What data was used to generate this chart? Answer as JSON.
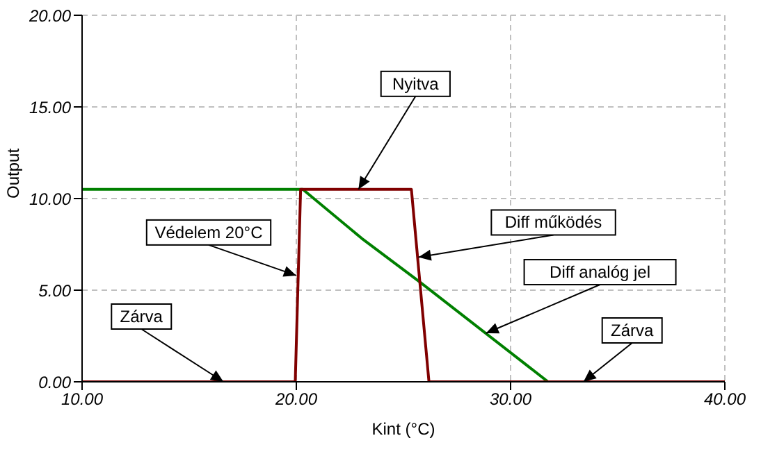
{
  "chart_data": {
    "type": "line",
    "xlabel": "Kint (°C)",
    "ylabel": "Output",
    "xlim": [
      10,
      40
    ],
    "xticks": [
      {
        "value": 10,
        "label": "10.00"
      },
      {
        "value": 20,
        "label": "20.00"
      },
      {
        "value": 30,
        "label": "30.00"
      },
      {
        "value": 40,
        "label": "40.00"
      }
    ],
    "ylim": [
      0,
      20
    ],
    "yticks": [
      {
        "value": 0,
        "label": "0.00"
      },
      {
        "value": 5,
        "label": "5.00"
      },
      {
        "value": 10,
        "label": "10.00"
      },
      {
        "value": 15,
        "label": "15.00"
      },
      {
        "value": 20,
        "label": "20.00"
      }
    ],
    "grid": true,
    "marker": "none",
    "line_style": "solid",
    "series": [
      {
        "color": "#008000",
        "x": [
          10,
          20.3,
          23.05,
          25.76,
          31.75,
          40
        ],
        "values": [
          10.5,
          10.5,
          7.83,
          5.45,
          0,
          0
        ]
      },
      {
        "color": "#800000",
        "x": [
          10,
          19.95,
          20.2,
          25.37,
          26.19,
          40
        ],
        "values": [
          0,
          0,
          10.5,
          10.5,
          0,
          0
        ]
      }
    ],
    "annotations": [
      {
        "text": "Nyitva",
        "x": 22.9,
        "y": 10.5
      },
      {
        "text": "Védelem 20°C",
        "x": 20,
        "y": 5.8
      },
      {
        "text": "Zárva",
        "x": 16.6,
        "y": 0
      },
      {
        "text": "Diff működés",
        "x": 25.7,
        "y": 6.8
      },
      {
        "text": "Diff analóg jel",
        "x": 28.85,
        "y": 2.65
      },
      {
        "text": "Zárva",
        "x": 33.4,
        "y": 0
      }
    ]
  }
}
